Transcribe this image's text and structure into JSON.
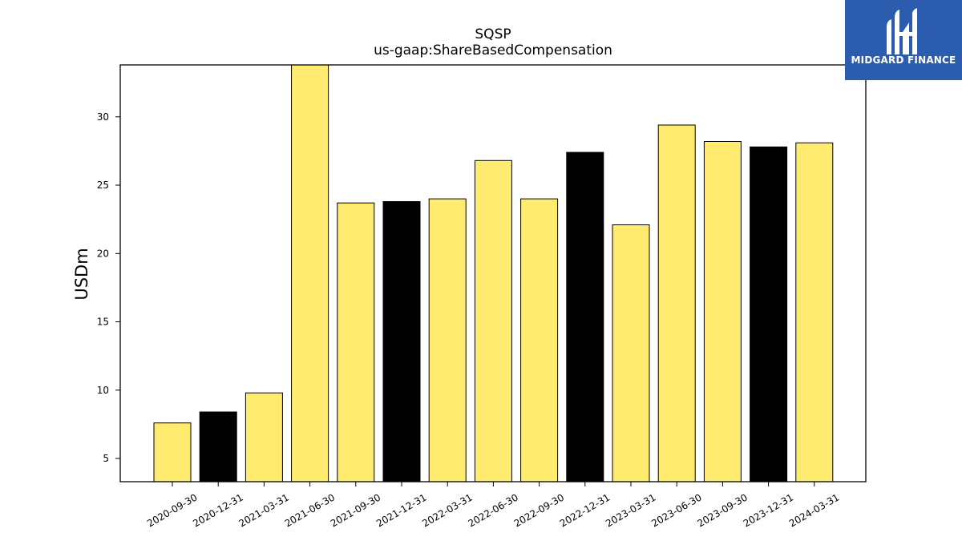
{
  "chart_data": {
    "type": "bar",
    "title": "SQSP",
    "subtitle": "us-gaap:ShareBasedCompensation",
    "xlabel": "",
    "ylabel": "USDm",
    "categories": [
      "2020-09-30",
      "2020-12-31",
      "2021-03-31",
      "2021-06-30",
      "2021-09-30",
      "2021-12-31",
      "2022-03-31",
      "2022-06-30",
      "2022-09-30",
      "2022-12-31",
      "2023-03-31",
      "2023-06-30",
      "2023-09-30",
      "2023-12-31",
      "2024-03-31"
    ],
    "values": [
      7.6,
      8.4,
      9.8,
      34.2,
      23.7,
      23.8,
      24.0,
      26.8,
      24.0,
      27.4,
      22.1,
      29.4,
      28.2,
      27.8,
      28.1
    ],
    "bar_colors": [
      "#ffeb70",
      "#000000",
      "#ffeb70",
      "#ffeb70",
      "#ffeb70",
      "#000000",
      "#ffeb70",
      "#ffeb70",
      "#ffeb70",
      "#000000",
      "#ffeb70",
      "#ffeb70",
      "#ffeb70",
      "#000000",
      "#ffeb70"
    ],
    "yticks": [
      5,
      10,
      15,
      20,
      25,
      30
    ],
    "ylim": [
      3.3,
      33.8
    ],
    "grid": false,
    "legend": "none"
  },
  "brand": {
    "name": "MIDGARD FINANCE",
    "icon": "midgard-logo-icon",
    "color": "#2b5cad"
  }
}
